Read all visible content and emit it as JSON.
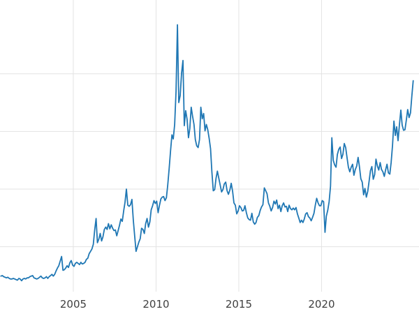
{
  "chart_data": {
    "type": "line",
    "title": "",
    "xlabel": "",
    "ylabel": "",
    "line_color": "#1f77b4",
    "grid_color": "#e3e3e3",
    "tick_label_color": "#404040",
    "background_color": "#ffffff",
    "legend": "none",
    "grid": "on",
    "x_tick_labels": [
      "2005",
      "2010",
      "2015",
      "2020"
    ],
    "x_tick_years": [
      2005,
      2010,
      2015,
      2020
    ],
    "y_gridline_values": [
      10,
      20,
      30,
      40
    ],
    "x_range": [
      2000.57,
      2025.89
    ],
    "y_range": [
      2.2,
      52.8
    ],
    "series": {
      "name": "price",
      "start_year": 2000.625,
      "step_years": 0.0833333,
      "values": [
        4.9,
        5.0,
        4.8,
        4.7,
        4.6,
        4.7,
        4.5,
        4.4,
        4.4,
        4.5,
        4.4,
        4.3,
        4.2,
        4.5,
        4.4,
        4.1,
        4.4,
        4.5,
        4.4,
        4.6,
        4.6,
        4.8,
        4.9,
        5.0,
        4.6,
        4.5,
        4.4,
        4.5,
        4.7,
        4.9,
        4.6,
        4.5,
        4.6,
        4.8,
        4.5,
        4.8,
        5.0,
        5.2,
        4.9,
        5.2,
        5.8,
        6.3,
        6.7,
        7.5,
        8.3,
        5.9,
        6.0,
        6.3,
        6.7,
        6.4,
        7.2,
        7.6,
        6.8,
        6.6,
        7.1,
        7.3,
        7.1,
        6.9,
        7.3,
        7.0,
        7.1,
        7.3,
        7.8,
        8.0,
        8.8,
        9.2,
        9.6,
        10.4,
        12.9,
        14.9,
        10.7,
        11.3,
        12.3,
        11.0,
        11.7,
        13.0,
        13.4,
        13.0,
        14.0,
        13.1,
        13.8,
        13.2,
        12.8,
        12.9,
        11.9,
        12.8,
        13.7,
        14.8,
        14.4,
        16.2,
        17.7,
        20.0,
        17.2,
        17.0,
        17.3,
        18.2,
        14.6,
        11.8,
        9.2,
        10.0,
        10.8,
        11.4,
        13.2,
        13.0,
        12.3,
        14.0,
        14.9,
        13.4,
        14.3,
        16.4,
        17.1,
        18.0,
        17.5,
        17.9,
        15.9,
        17.2,
        18.3,
        18.6,
        18.7,
        18.0,
        18.5,
        20.7,
        23.5,
        26.6,
        29.4,
        28.7,
        31.2,
        37.0,
        48.5,
        35.0,
        36.2,
        40.1,
        42.3,
        31.0,
        33.6,
        32.1,
        28.9,
        30.5,
        34.2,
        32.6,
        31.2,
        28.6,
        27.5,
        27.2,
        28.6,
        34.2,
        32.2,
        33.1,
        30.1,
        31.2,
        30.3,
        28.8,
        27.0,
        23.0,
        19.7,
        19.9,
        21.9,
        23.1,
        21.9,
        20.7,
        19.5,
        19.9,
        20.9,
        21.2,
        19.7,
        19.1,
        19.8,
        21.0,
        19.6,
        17.6,
        17.2,
        15.7,
        16.2,
        17.1,
        16.8,
        16.2,
        16.3,
        17.1,
        15.9,
        15.0,
        14.7,
        14.6,
        15.8,
        14.3,
        13.9,
        14.2,
        15.1,
        15.4,
        16.3,
        16.9,
        17.3,
        20.2,
        19.7,
        19.2,
        17.6,
        17.0,
        16.2,
        16.8,
        17.9,
        17.4,
        18.1,
        16.6,
        17.2,
        16.1,
        17.1,
        17.6,
        16.9,
        17.0,
        16.1,
        17.2,
        16.6,
        16.4,
        16.7,
        16.4,
        16.8,
        15.7,
        15.0,
        14.2,
        14.6,
        14.2,
        14.8,
        15.7,
        15.9,
        15.2,
        15.0,
        14.5,
        15.1,
        15.8,
        17.2,
        18.4,
        17.6,
        17.1,
        17.1,
        18.0,
        17.8,
        12.5,
        15.3,
        16.3,
        17.8,
        20.5,
        28.9,
        25.0,
        24.2,
        23.8,
        26.0,
        26.9,
        27.3,
        25.3,
        26.0,
        27.9,
        27.2,
        25.4,
        23.8,
        23.0,
        23.8,
        24.3,
        22.4,
        23.4,
        24.0,
        25.5,
        23.9,
        21.8,
        21.2,
        19.0,
        20.1,
        18.6,
        19.6,
        21.4,
        23.2,
        23.9,
        21.7,
        22.5,
        25.2,
        24.0,
        23.3,
        24.6,
        23.4,
        23.0,
        22.2,
        23.4,
        24.3,
        22.8,
        22.6,
        24.6,
        27.6,
        31.8,
        29.3,
        30.8,
        28.4,
        31.2,
        33.7,
        31.1,
        30.2,
        30.3,
        32.0,
        33.8,
        32.4,
        33.2,
        36.2,
        38.8
      ]
    }
  }
}
